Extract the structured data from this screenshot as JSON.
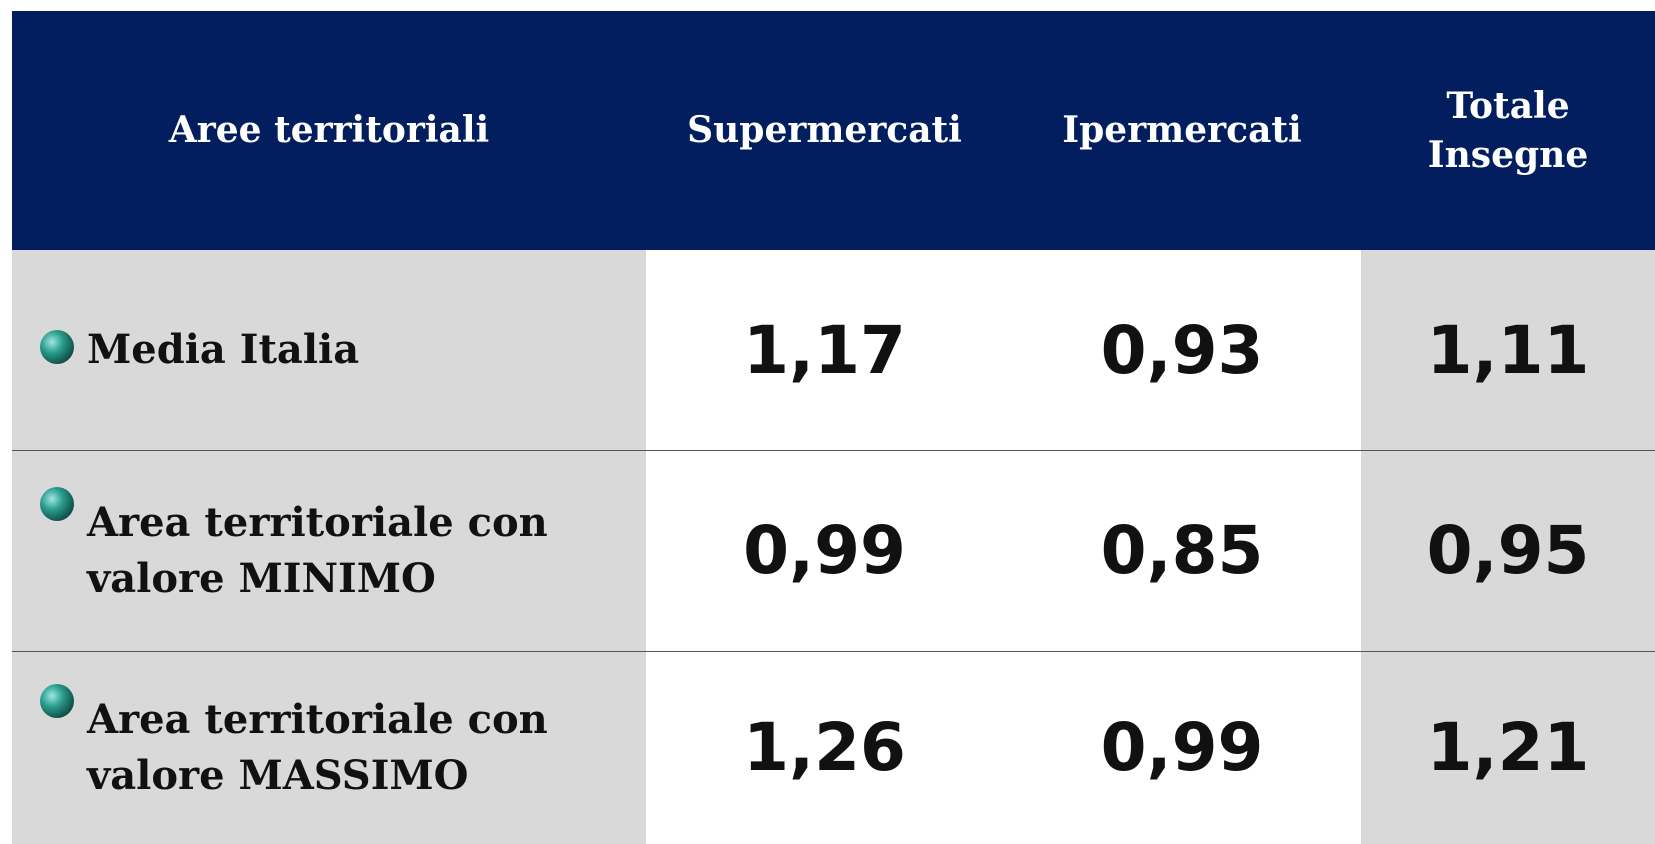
{
  "table": {
    "header": [
      "Aree territoriali",
      "Supermercati",
      "Ipermercati",
      "Totale Insegne"
    ],
    "rows": [
      [
        "Media Italia",
        "1,17",
        "0,93",
        "1,11"
      ],
      [
        "Area territoriale con valore MINIMO",
        "0,99",
        "0,85",
        "0,95"
      ],
      [
        "Area territoriale con valore MASSIMO",
        "1,26",
        "0,99",
        "1,21"
      ]
    ]
  }
}
